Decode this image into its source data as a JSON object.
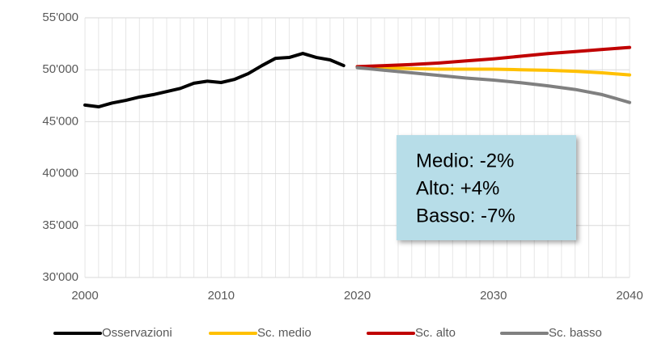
{
  "chart_data": {
    "type": "line",
    "series": [
      {
        "name": "Osservazioni",
        "color": "#000000",
        "x": [
          2000,
          2001,
          2002,
          2003,
          2004,
          2005,
          2006,
          2007,
          2008,
          2009,
          2010,
          2011,
          2012,
          2013,
          2014,
          2015,
          2016,
          2017,
          2018,
          2019
        ],
        "values": [
          46600,
          46430,
          46800,
          47050,
          47370,
          47600,
          47900,
          48200,
          48700,
          48900,
          48770,
          49080,
          49630,
          50400,
          51100,
          51180,
          51570,
          51180,
          50950,
          50400
        ]
      },
      {
        "name": "Sc. medio",
        "color": "#ffc000",
        "x": [
          2020,
          2022,
          2024,
          2026,
          2028,
          2030,
          2032,
          2034,
          2036,
          2038,
          2040
        ],
        "values": [
          50300,
          50200,
          50100,
          50050,
          50050,
          50050,
          50000,
          49950,
          49850,
          49700,
          49500
        ]
      },
      {
        "name": "Sc. alto",
        "color": "#c00000",
        "x": [
          2020,
          2022,
          2024,
          2026,
          2028,
          2030,
          2032,
          2034,
          2036,
          2038,
          2040
        ],
        "values": [
          50300,
          50400,
          50500,
          50650,
          50850,
          51050,
          51300,
          51550,
          51750,
          51950,
          52150
        ]
      },
      {
        "name": "Sc. basso",
        "color": "#808080",
        "x": [
          2020,
          2022,
          2024,
          2026,
          2028,
          2030,
          2032,
          2034,
          2036,
          2038,
          2040
        ],
        "values": [
          50200,
          49950,
          49700,
          49450,
          49200,
          49000,
          48750,
          48450,
          48100,
          47600,
          46850
        ]
      }
    ],
    "xlim": [
      2000,
      2040
    ],
    "xticks": [
      2000,
      2010,
      2020,
      2030,
      2040
    ],
    "ylim": [
      30000,
      55000
    ],
    "yticks": [
      {
        "value": 30000,
        "label": "30'000"
      },
      {
        "value": 35000,
        "label": "35'000"
      },
      {
        "value": 40000,
        "label": "40'000"
      },
      {
        "value": 45000,
        "label": "45'000"
      },
      {
        "value": 50000,
        "label": "50'000"
      },
      {
        "value": 55000,
        "label": "55'000"
      }
    ],
    "grid": true,
    "legend": "bottom",
    "annotations": [
      "Medio: -2%",
      "Alto: +4%",
      "Basso: -7%"
    ]
  }
}
